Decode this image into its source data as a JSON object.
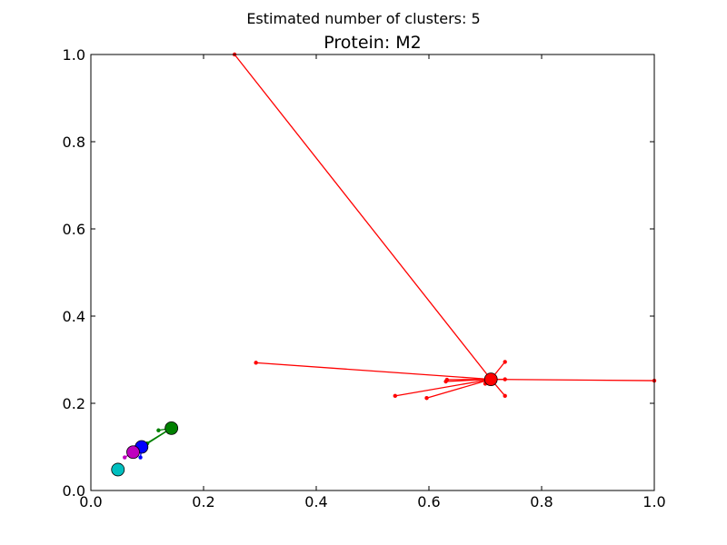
{
  "figure": {
    "suptitle": "Estimated number of clusters: 5"
  },
  "chart_data": {
    "type": "scatter",
    "title": "Protein: M2",
    "xlabel": "",
    "ylabel": "",
    "xlim": [
      0.0,
      1.0
    ],
    "ylim": [
      0.0,
      1.0
    ],
    "xticks": [
      "0.0",
      "0.2",
      "0.4",
      "0.6",
      "0.8",
      "1.0"
    ],
    "yticks": [
      "0.0",
      "0.2",
      "0.4",
      "0.6",
      "0.8",
      "1.0"
    ],
    "xtick_values": [
      0.0,
      0.2,
      0.4,
      0.6,
      0.8,
      1.0
    ],
    "ytick_values": [
      0.0,
      0.2,
      0.4,
      0.6,
      0.8,
      1.0
    ],
    "grid": false,
    "clusters": [
      {
        "color": "#ff0000",
        "center": [
          0.71,
          0.255
        ],
        "points": [
          [
            0.255,
            1.0
          ],
          [
            0.293,
            0.293
          ],
          [
            0.54,
            0.217
          ],
          [
            0.596,
            0.212
          ],
          [
            0.63,
            0.25
          ],
          [
            0.632,
            0.254
          ],
          [
            0.7,
            0.245
          ],
          [
            0.705,
            0.25
          ],
          [
            0.735,
            0.217
          ],
          [
            0.735,
            0.295
          ],
          [
            0.735,
            0.255
          ],
          [
            1.0,
            0.252
          ]
        ]
      },
      {
        "color": "#008000",
        "center": [
          0.143,
          0.143
        ],
        "points": [
          [
            0.12,
            0.138
          ],
          [
            0.09,
            0.1
          ],
          [
            0.085,
            0.095
          ],
          [
            0.095,
            0.105
          ],
          [
            0.1,
            0.108
          ]
        ]
      },
      {
        "color": "#0000ff",
        "center": [
          0.09,
          0.1
        ],
        "points": [
          [
            0.08,
            0.1
          ],
          [
            0.088,
            0.076
          ],
          [
            0.095,
            0.098
          ]
        ]
      },
      {
        "color": "#bf00bf",
        "center": [
          0.075,
          0.088
        ],
        "points": [
          [
            0.06,
            0.076
          ],
          [
            0.07,
            0.082
          ]
        ]
      },
      {
        "color": "#00bfbf",
        "center": [
          0.048,
          0.048
        ],
        "points": [
          [
            0.05,
            0.05
          ]
        ]
      }
    ]
  }
}
